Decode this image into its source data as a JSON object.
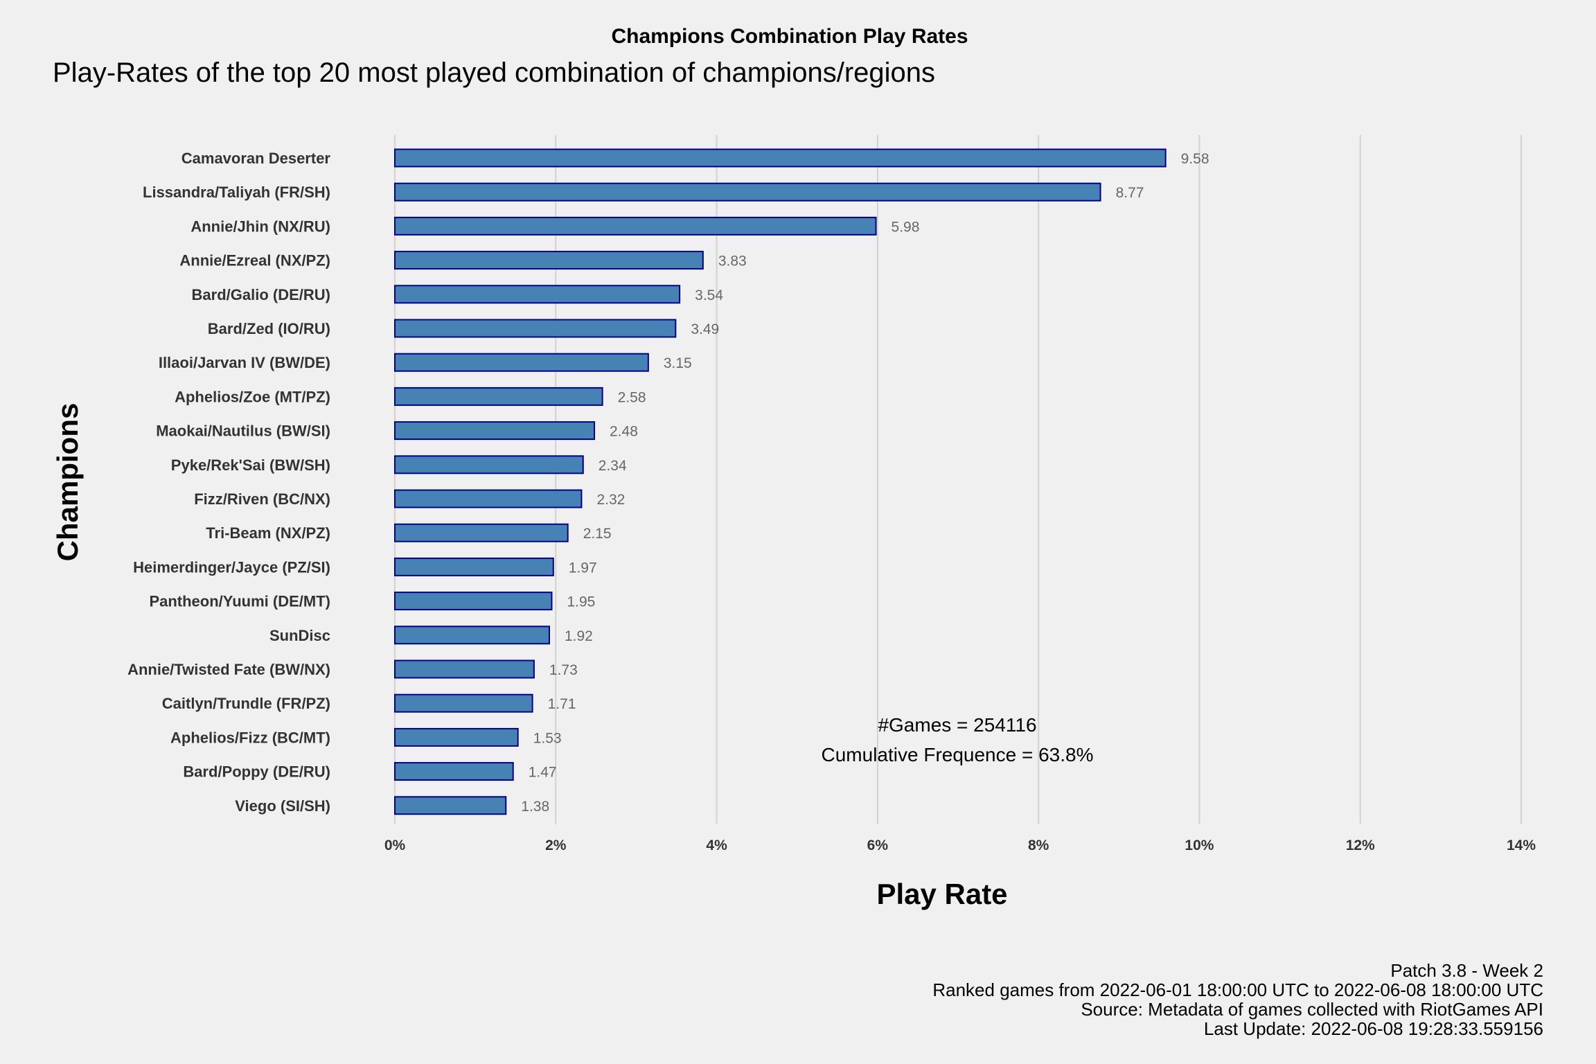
{
  "chart_data": {
    "type": "bar",
    "orientation": "horizontal",
    "title": "Champions Combination Play Rates",
    "subtitle": "Play-Rates of the top 20 most played combination of champions/regions",
    "xlabel": "Play Rate",
    "ylabel": "Champions",
    "xlim": [
      0,
      14
    ],
    "x_ticks": [
      "0%",
      "2%",
      "4%",
      "6%",
      "8%",
      "10%",
      "12%",
      "14%"
    ],
    "x_tick_values": [
      0,
      2,
      4,
      6,
      8,
      10,
      12,
      14
    ],
    "grid": "vertical major gridlines",
    "legend": "none",
    "bar_color": "#4682b4",
    "bar_outline_color": "#00008b",
    "categories": [
      "Camavoran Deserter",
      "Lissandra/Taliyah (FR/SH)",
      "Annie/Jhin (NX/RU)",
      "Annie/Ezreal (NX/PZ)",
      "Bard/Galio (DE/RU)",
      "Bard/Zed (IO/RU)",
      "Illaoi/Jarvan IV (BW/DE)",
      "Aphelios/Zoe (MT/PZ)",
      "Maokai/Nautilus (BW/SI)",
      "Pyke/Rek'Sai (BW/SH)",
      "Fizz/Riven (BC/NX)",
      "Tri-Beam (NX/PZ)",
      "Heimerdinger/Jayce (PZ/SI)",
      "Pantheon/Yuumi (DE/MT)",
      "SunDisc",
      "Annie/Twisted Fate (BW/NX)",
      "Caitlyn/Trundle (FR/PZ)",
      "Aphelios/Fizz (BC/MT)",
      "Bard/Poppy (DE/RU)",
      "Viego (SI/SH)"
    ],
    "values": [
      9.58,
      8.77,
      5.98,
      3.83,
      3.54,
      3.49,
      3.15,
      2.58,
      2.48,
      2.34,
      2.32,
      2.15,
      1.97,
      1.95,
      1.92,
      1.73,
      1.71,
      1.53,
      1.47,
      1.38
    ],
    "value_labels": [
      "9.58",
      "8.77",
      "5.98",
      "3.83",
      "3.54",
      "3.49",
      "3.15",
      "2.58",
      "2.48",
      "2.34",
      "2.32",
      "2.15",
      "1.97",
      "1.95",
      "1.92",
      "1.73",
      "1.71",
      "1.53",
      "1.47",
      "1.38"
    ],
    "annotations": [
      "#Games = 254116",
      "Cumulative Frequence = 63.8%"
    ]
  },
  "caption": [
    "Patch 3.8 - Week 2",
    "Ranked games from 2022-06-01 18:00:00 UTC to 2022-06-08 18:00:00 UTC",
    "Source: Metadata of games collected with RiotGames API",
    "Last Update: 2022-06-08 19:28:33.559156"
  ]
}
